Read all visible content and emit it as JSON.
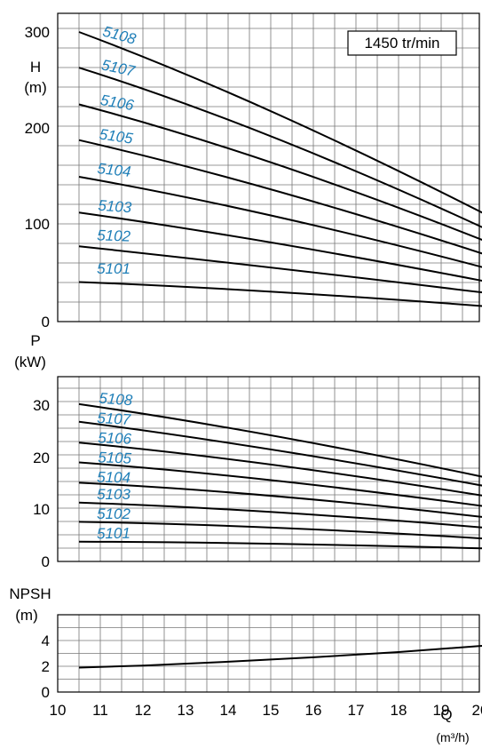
{
  "chart_data": [
    {
      "type": "line",
      "panel": "head",
      "speed_label": "1450 tr/min",
      "ylabel_line1": "H",
      "ylabel_line2": "(m)",
      "yticks": [
        "0",
        "100",
        "200",
        "300"
      ],
      "ylim": [
        0,
        310
      ],
      "xlim": [
        10,
        20
      ],
      "grid": true,
      "series": [
        {
          "name": "5108",
          "x": [
            10.5,
            15,
            20
          ],
          "y": [
            300,
            218,
            112
          ]
        },
        {
          "name": "5107",
          "x": [
            10.5,
            15,
            20
          ],
          "y": [
            263,
            192,
            97
          ]
        },
        {
          "name": "5106",
          "x": [
            10.5,
            15,
            20
          ],
          "y": [
            225,
            165,
            84
          ]
        },
        {
          "name": "5105",
          "x": [
            10.5,
            15,
            20
          ],
          "y": [
            188,
            137,
            70
          ]
        },
        {
          "name": "5104",
          "x": [
            10.5,
            15,
            20
          ],
          "y": [
            150,
            110,
            56
          ]
        },
        {
          "name": "5103",
          "x": [
            10.5,
            15,
            20
          ],
          "y": [
            113,
            82,
            42
          ]
        },
        {
          "name": "5102",
          "x": [
            10.5,
            15,
            20
          ],
          "y": [
            78,
            56,
            30
          ]
        },
        {
          "name": "5101",
          "x": [
            10.5,
            15,
            20
          ],
          "y": [
            41,
            31,
            16
          ]
        }
      ]
    },
    {
      "type": "line",
      "panel": "power",
      "ylabel_line1": "P",
      "ylabel_line2": "(kW)",
      "yticks": [
        "0",
        "10",
        "20",
        "30"
      ],
      "ylim": [
        0,
        36
      ],
      "xlim": [
        10,
        20
      ],
      "grid": true,
      "series": [
        {
          "name": "5108",
          "x": [
            10.5,
            15,
            20
          ],
          "y": [
            30.2,
            24.2,
            16.2
          ]
        },
        {
          "name": "5107",
          "x": [
            10.5,
            15,
            20
          ],
          "y": [
            26.8,
            21.5,
            14.5
          ]
        },
        {
          "name": "5106",
          "x": [
            10.5,
            15,
            20
          ],
          "y": [
            22.8,
            18.6,
            12.6
          ]
        },
        {
          "name": "5105",
          "x": [
            10.5,
            15,
            20
          ],
          "y": [
            19.0,
            15.6,
            10.6
          ]
        },
        {
          "name": "5104",
          "x": [
            10.5,
            15,
            20
          ],
          "y": [
            15.1,
            12.6,
            8.5
          ]
        },
        {
          "name": "5103",
          "x": [
            10.5,
            15,
            20
          ],
          "y": [
            11.3,
            9.5,
            6.5
          ]
        },
        {
          "name": "5102",
          "x": [
            10.5,
            15,
            20
          ],
          "y": [
            7.6,
            6.5,
            4.4
          ]
        },
        {
          "name": "5101",
          "x": [
            10.5,
            15,
            20
          ],
          "y": [
            3.8,
            3.4,
            2.5
          ]
        }
      ]
    },
    {
      "type": "line",
      "panel": "npsh",
      "ylabel_line1": "NPSH",
      "ylabel_line2": "(m)",
      "yticks": [
        "0",
        "2",
        "4"
      ],
      "ylim": [
        0,
        6
      ],
      "xlim": [
        10,
        20
      ],
      "grid": true,
      "xlabel": "Q",
      "xunit": "(m³/h)",
      "xticks": [
        "10",
        "11",
        "12",
        "13",
        "14",
        "15",
        "16",
        "17",
        "18",
        "19",
        "20"
      ],
      "series": [
        {
          "x": [
            10.5,
            12,
            14,
            16,
            18,
            20
          ],
          "y": [
            1.9,
            2.05,
            2.35,
            2.7,
            3.1,
            3.6
          ]
        }
      ]
    }
  ]
}
